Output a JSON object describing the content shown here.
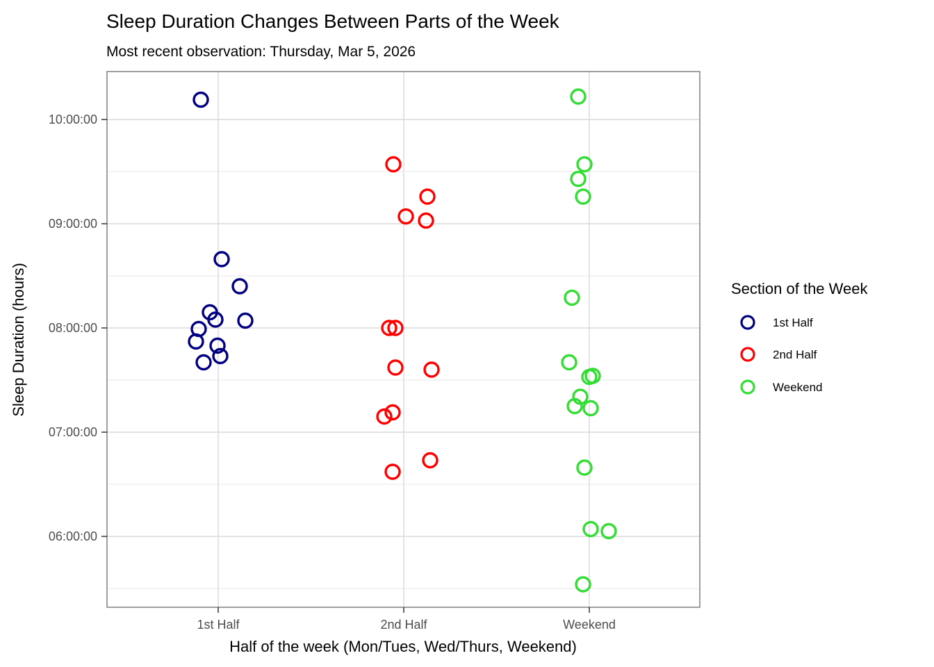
{
  "page": {
    "background": "#ffffff"
  },
  "chart_data": {
    "type": "scatter",
    "title": "Sleep Duration Changes Between Parts of the Week",
    "subtitle": "Most recent observation: Thursday, Mar 5, 2026",
    "xlabel": "Half of the week (Mon/Tues, Wed/Thurs, Weekend)",
    "ylabel": "Sleep Duration (hours)",
    "x_categories": [
      "1st Half",
      "2nd Half",
      "Weekend"
    ],
    "y_ticks": [
      {
        "label": "10:00:00",
        "value": 10
      },
      {
        "label": "09:00:00",
        "value": 9
      },
      {
        "label": "08:00:00",
        "value": 8
      },
      {
        "label": "07:00:00",
        "value": 7
      },
      {
        "label": "06:00:00",
        "value": 6
      }
    ],
    "y_minor_ticks": [
      9.5,
      8.5,
      7.5,
      6.5,
      5.5
    ],
    "ylim": [
      5.31,
      10.47
    ],
    "grid": {
      "show_major": true,
      "show_minor": true,
      "major_color": "#d9d9d9",
      "minor_color": "#ececec",
      "panel_border_color": "#7f7f7f",
      "tick_color": "#333333",
      "background": "#ffffff"
    },
    "legend": {
      "title": "Section of the Week",
      "position": "right",
      "entries": [
        {
          "label": "1st Half",
          "color": "#000080"
        },
        {
          "label": "2nd Half",
          "color": "#ff0000"
        },
        {
          "label": "Weekend",
          "color": "#33dd33"
        }
      ]
    },
    "series": [
      {
        "name": "1st Half",
        "color": "#000080",
        "points": [
          {
            "hours": 10.19,
            "jitter": -25
          },
          {
            "hours": 8.66,
            "jitter": 5
          },
          {
            "hours": 8.4,
            "jitter": 31
          },
          {
            "hours": 8.15,
            "jitter": -12
          },
          {
            "hours": 8.08,
            "jitter": -4
          },
          {
            "hours": 8.07,
            "jitter": 39
          },
          {
            "hours": 7.99,
            "jitter": -28
          },
          {
            "hours": 7.87,
            "jitter": -32
          },
          {
            "hours": 7.83,
            "jitter": -1
          },
          {
            "hours": 7.73,
            "jitter": 3
          },
          {
            "hours": 7.67,
            "jitter": -21
          }
        ]
      },
      {
        "name": "2nd Half",
        "color": "#ff0000",
        "points": [
          {
            "hours": 9.57,
            "jitter": -15
          },
          {
            "hours": 9.26,
            "jitter": 34
          },
          {
            "hours": 9.07,
            "jitter": 3
          },
          {
            "hours": 9.03,
            "jitter": 32
          },
          {
            "hours": 8.0,
            "jitter": -21
          },
          {
            "hours": 8.0,
            "jitter": -12
          },
          {
            "hours": 7.62,
            "jitter": -12
          },
          {
            "hours": 7.6,
            "jitter": 40
          },
          {
            "hours": 7.19,
            "jitter": -16
          },
          {
            "hours": 7.15,
            "jitter": -28
          },
          {
            "hours": 6.73,
            "jitter": 38
          },
          {
            "hours": 6.62,
            "jitter": -16
          }
        ]
      },
      {
        "name": "Weekend",
        "color": "#33dd33",
        "points": [
          {
            "hours": 10.22,
            "jitter": -16
          },
          {
            "hours": 9.57,
            "jitter": -7
          },
          {
            "hours": 9.43,
            "jitter": -16
          },
          {
            "hours": 9.26,
            "jitter": -9
          },
          {
            "hours": 8.29,
            "jitter": -25
          },
          {
            "hours": 7.67,
            "jitter": -29
          },
          {
            "hours": 7.54,
            "jitter": 5
          },
          {
            "hours": 7.53,
            "jitter": 0
          },
          {
            "hours": 7.34,
            "jitter": -13
          },
          {
            "hours": 7.25,
            "jitter": -21
          },
          {
            "hours": 7.23,
            "jitter": 2
          },
          {
            "hours": 6.66,
            "jitter": -7
          },
          {
            "hours": 6.07,
            "jitter": 2
          },
          {
            "hours": 6.05,
            "jitter": 28
          },
          {
            "hours": 5.54,
            "jitter": -9
          }
        ]
      }
    ]
  }
}
